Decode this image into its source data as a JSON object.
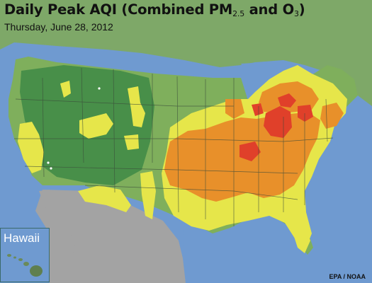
{
  "title": {
    "main": "Daily Peak AQI (Combined PM",
    "pm_sub": "2.5",
    "middle": " and O",
    "o3_sub": "3",
    "close": ")"
  },
  "date": "Thursday, June 28, 2012",
  "inset": {
    "label": "Hawaii"
  },
  "credit": "EPA / NOAA",
  "colors": {
    "ocean": "#6f9ad0",
    "non_us_land": "#a3a3a3",
    "aqi_good": "#7faf5c",
    "aqi_moderate": "#e6e64a",
    "aqi_unhealthy_sensitive": "#e8902a",
    "aqi_unhealthy": "#e0402a",
    "mountain_green": "#3e8a45"
  }
}
